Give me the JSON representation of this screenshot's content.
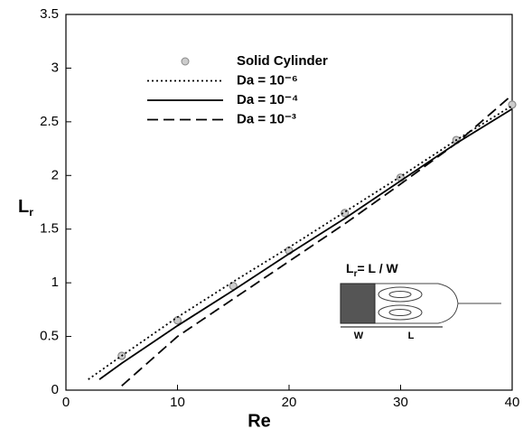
{
  "chart_data": {
    "type": "line",
    "xlabel": "Re",
    "ylabel": "L",
    "ylabel_sub": "r",
    "xlim": [
      0,
      40
    ],
    "ylim": [
      0,
      3.5
    ],
    "xticks": [
      0,
      10,
      20,
      30,
      40
    ],
    "yticks": [
      0,
      0.5,
      1,
      1.5,
      2,
      2.5,
      3,
      3.5
    ],
    "series": [
      {
        "name": "Solid Cylinder",
        "kind": "scatter",
        "color": "#888888",
        "x": [
          5,
          10,
          15,
          20,
          25,
          30,
          35,
          40
        ],
        "values": [
          0.32,
          0.65,
          0.97,
          1.3,
          1.65,
          1.98,
          2.33,
          2.66
        ]
      },
      {
        "name": "Da = 10⁻⁶",
        "kind": "line",
        "dash": "dotted",
        "color": "#000000",
        "x": [
          2,
          5,
          10,
          15,
          20,
          25,
          30,
          35,
          40
        ],
        "values": [
          0.1,
          0.32,
          0.68,
          1.01,
          1.33,
          1.66,
          1.99,
          2.33,
          2.65
        ]
      },
      {
        "name": "Da = 10⁻⁴",
        "kind": "line",
        "dash": "solid",
        "color": "#000000",
        "x": [
          3,
          5,
          10,
          15,
          20,
          25,
          30,
          35,
          40
        ],
        "values": [
          0.1,
          0.25,
          0.6,
          0.93,
          1.27,
          1.6,
          1.95,
          2.3,
          2.62
        ]
      },
      {
        "name": "Da = 10⁻³",
        "kind": "line",
        "dash": "dashed",
        "color": "#000000",
        "x": [
          5,
          10,
          15,
          20,
          25,
          30,
          35,
          40
        ],
        "values": [
          0.04,
          0.5,
          0.85,
          1.2,
          1.55,
          1.92,
          2.3,
          2.75
        ]
      }
    ],
    "inset": {
      "formula_main": "L",
      "formula_sub": "r",
      "formula_rest": "= L / W",
      "w_label": "W",
      "l_label": "L"
    }
  }
}
